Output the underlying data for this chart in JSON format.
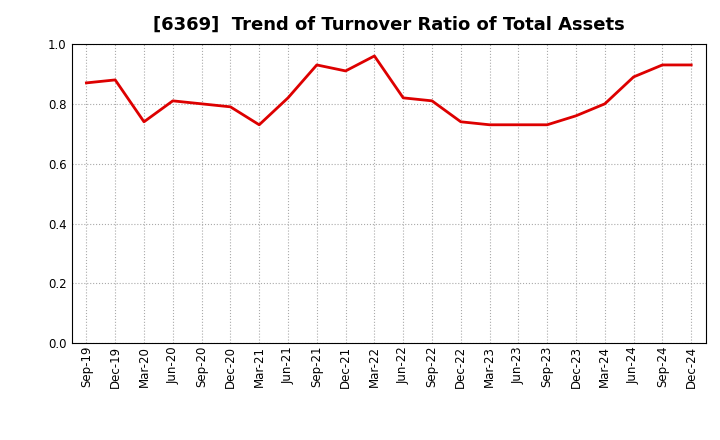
{
  "title": "[6369]  Trend of Turnover Ratio of Total Assets",
  "labels": [
    "Sep-19",
    "Dec-19",
    "Mar-20",
    "Jun-20",
    "Sep-20",
    "Dec-20",
    "Mar-21",
    "Jun-21",
    "Sep-21",
    "Dec-21",
    "Mar-22",
    "Jun-22",
    "Sep-22",
    "Dec-22",
    "Mar-23",
    "Jun-23",
    "Sep-23",
    "Dec-23",
    "Mar-24",
    "Jun-24",
    "Sep-24",
    "Dec-24"
  ],
  "values": [
    0.87,
    0.88,
    0.74,
    0.81,
    0.8,
    0.79,
    0.73,
    0.82,
    0.93,
    0.91,
    0.96,
    0.82,
    0.81,
    0.74,
    0.73,
    0.73,
    0.73,
    0.76,
    0.8,
    0.89,
    0.93,
    0.93
  ],
  "line_color": "#DD0000",
  "line_width": 2.0,
  "background_color": "#FFFFFF",
  "plot_bg_color": "#FFFFFF",
  "grid_color": "#AAAAAA",
  "ylim": [
    0.0,
    1.0
  ],
  "yticks": [
    0.0,
    0.2,
    0.4,
    0.6,
    0.8,
    1.0
  ],
  "title_fontsize": 13,
  "tick_fontsize": 8.5,
  "title_fontweight": "bold"
}
